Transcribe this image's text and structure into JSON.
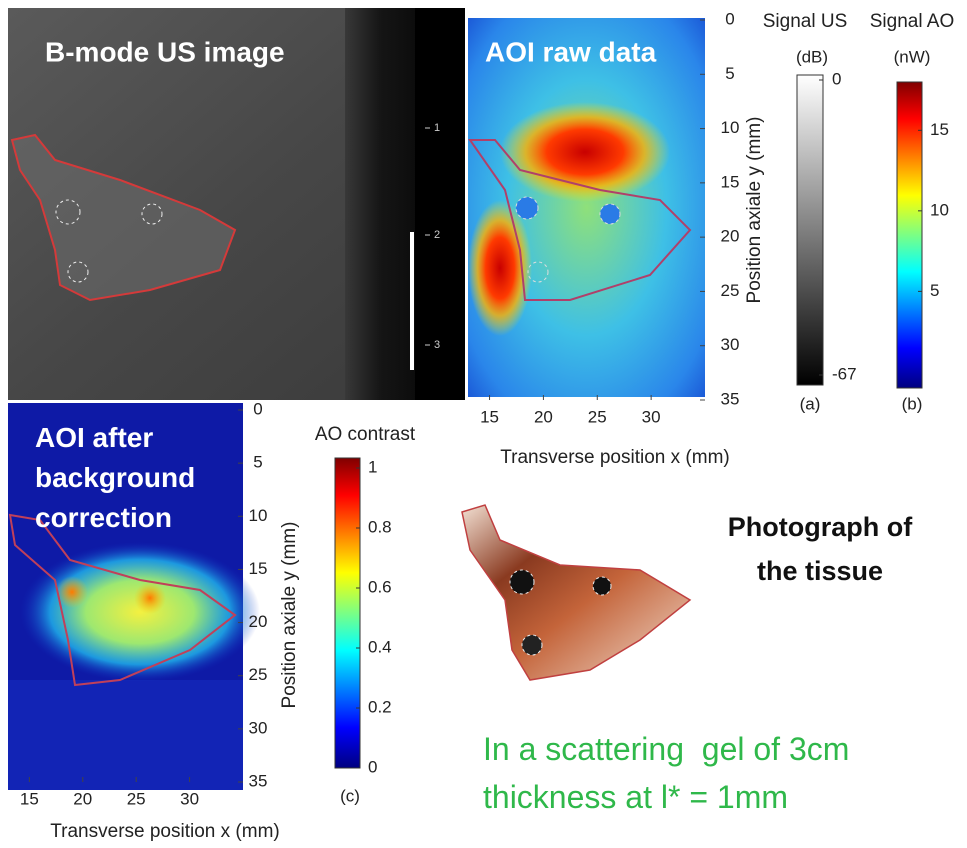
{
  "panels": {
    "bmode": {
      "title": "B-mode US image",
      "scale_ticks": [
        1,
        2,
        3
      ]
    },
    "aoi_raw": {
      "title": "AOI raw data",
      "xlabel": "Transverse position x (mm)",
      "ylabel": "Position axiale y (mm)",
      "xlim": [
        13,
        35
      ],
      "xticks": [
        15,
        20,
        25,
        30
      ],
      "ylim": [
        0,
        35
      ],
      "yticks": [
        0,
        5,
        10,
        15,
        20,
        25,
        30,
        35
      ]
    },
    "colorbar_us": {
      "title": "Signal US",
      "unit": "(dB)",
      "lim": [
        -67,
        0
      ],
      "ticks": [
        0,
        -67
      ],
      "panel_label": "(a)"
    },
    "colorbar_ao": {
      "title": "Signal AO",
      "unit": "(nW)",
      "lim": [
        -1,
        18
      ],
      "ticks": [
        5,
        10,
        15
      ],
      "panel_label": "(b)"
    },
    "aoi_corrected": {
      "title": "AOI after background correction",
      "xlabel": "Transverse position x (mm)",
      "ylabel": "Position axiale y (mm)",
      "xlim": [
        13,
        35
      ],
      "xticks": [
        15,
        20,
        25,
        30
      ],
      "ylim": [
        0,
        35
      ],
      "yticks": [
        0,
        5,
        10,
        15,
        20,
        25,
        30,
        35
      ]
    },
    "colorbar_contrast": {
      "title": "AO contrast",
      "lim": [
        0,
        1
      ],
      "ticks": [
        0,
        0.2,
        0.4,
        0.6,
        0.8,
        1
      ],
      "panel_label": "(c)"
    },
    "photo": {
      "caption": "Photograph of the tissue"
    },
    "note": "In a scattering  gel of 3cm thickness at l* = 1mm"
  }
}
